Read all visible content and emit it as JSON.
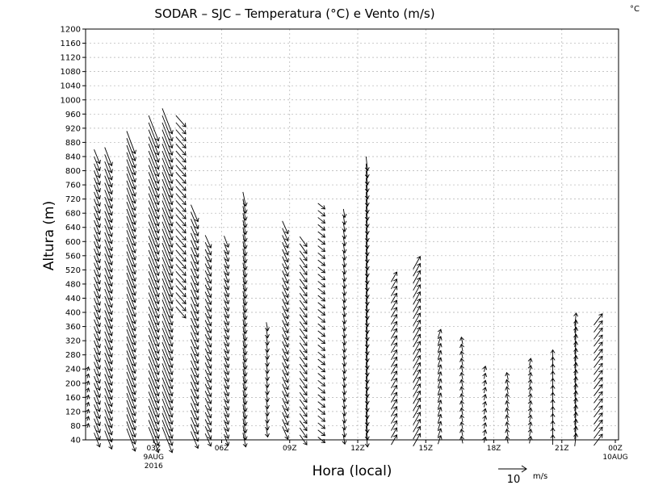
{
  "chart_data": {
    "type": "vector-field",
    "title": "SODAR – SJC – Temperatura (°C) e Vento (m/s)",
    "corner_label": "°C",
    "xlabel": "Hora (local)",
    "ylabel": "Altura (m)",
    "ylim": [
      40,
      1200
    ],
    "yticks": [
      40,
      80,
      120,
      160,
      200,
      240,
      280,
      320,
      360,
      400,
      440,
      480,
      520,
      560,
      600,
      640,
      680,
      720,
      760,
      800,
      840,
      880,
      920,
      960,
      1000,
      1040,
      1080,
      1120,
      1160,
      1200
    ],
    "xlim": [
      0,
      23.5
    ],
    "xticks": [
      {
        "hour": 3,
        "label": "03Z",
        "sub1": "9AUG",
        "sub2": "2016"
      },
      {
        "hour": 6,
        "label": "06Z"
      },
      {
        "hour": 9,
        "label": "09Z"
      },
      {
        "hour": 12,
        "label": "12Z"
      },
      {
        "hour": 15,
        "label": "15Z"
      },
      {
        "hour": 18,
        "label": "18Z"
      },
      {
        "hour": 21,
        "label": "21Z"
      },
      {
        "hour": 24,
        "label": "00Z",
        "sub1": "10AUG"
      }
    ],
    "reference_vector": {
      "value": 10,
      "unit": "m/s",
      "label": "10",
      "unit_label": "m/s"
    },
    "columns": [
      {
        "hour": 0.1,
        "bottom": 80,
        "top": 240,
        "u": 0.5,
        "v": 1.5
      },
      {
        "hour": 0.5,
        "bottom": 40,
        "top": 840,
        "u": 2.0,
        "v": -5.0
      },
      {
        "hour": 1.0,
        "bottom": 40,
        "top": 840,
        "u": 2.5,
        "v": -6.5
      },
      {
        "hour": 2.0,
        "bottom": 40,
        "top": 880,
        "u": 3.0,
        "v": -8.0
      },
      {
        "hour": 3.0,
        "bottom": 40,
        "top": 920,
        "u": 3.5,
        "v": -9.0
      },
      {
        "hour": 3.6,
        "bottom": 40,
        "top": 940,
        "u": 3.5,
        "v": -9.0
      },
      {
        "hour": 4.2,
        "bottom": 400,
        "top": 940,
        "u": 3.5,
        "v": -4.0
      },
      {
        "hour": 4.8,
        "bottom": 40,
        "top": 680,
        "u": 2.5,
        "v": -6.0
      },
      {
        "hour": 5.4,
        "bottom": 40,
        "top": 610,
        "u": 2.0,
        "v": -4.5
      },
      {
        "hour": 6.2,
        "bottom": 40,
        "top": 600,
        "u": 1.5,
        "v": -4.0
      },
      {
        "hour": 7.0,
        "bottom": 40,
        "top": 720,
        "u": 1.0,
        "v": -5.0
      },
      {
        "hour": 8.0,
        "bottom": 60,
        "top": 360,
        "u": 0.5,
        "v": -3.0
      },
      {
        "hour": 8.8,
        "bottom": 60,
        "top": 640,
        "u": 2.0,
        "v": -4.5
      },
      {
        "hour": 9.6,
        "bottom": 40,
        "top": 600,
        "u": 2.5,
        "v": -3.5
      },
      {
        "hour": 10.4,
        "bottom": 40,
        "top": 700,
        "u": 2.5,
        "v": -2.0
      },
      {
        "hour": 11.4,
        "bottom": 40,
        "top": 680,
        "u": 0.5,
        "v": -3.0
      },
      {
        "hour": 12.4,
        "bottom": 40,
        "top": 830,
        "u": 0.5,
        "v": -5.0
      },
      {
        "hour": 13.6,
        "bottom": 40,
        "top": 500,
        "u": 2.0,
        "v": 3.5
      },
      {
        "hour": 14.6,
        "bottom": 40,
        "top": 540,
        "u": 2.5,
        "v": 4.5
      },
      {
        "hour": 15.6,
        "bottom": 40,
        "top": 350,
        "u": 1.0,
        "v": 3.0
      },
      {
        "hour": 16.6,
        "bottom": 40,
        "top": 330,
        "u": -0.5,
        "v": 2.5
      },
      {
        "hour": 17.6,
        "bottom": 40,
        "top": 240,
        "u": 0.5,
        "v": 2.0
      },
      {
        "hour": 18.6,
        "bottom": 40,
        "top": 220,
        "u": -0.5,
        "v": 2.5
      },
      {
        "hour": 19.6,
        "bottom": 40,
        "top": 260,
        "u": 0.5,
        "v": 2.5
      },
      {
        "hour": 20.6,
        "bottom": 40,
        "top": 290,
        "u": 0.0,
        "v": 3.5
      },
      {
        "hour": 21.6,
        "bottom": 40,
        "top": 380,
        "u": 0.5,
        "v": 4.5
      },
      {
        "hour": 22.6,
        "bottom": 40,
        "top": 390,
        "u": 3.0,
        "v": 4.0
      }
    ]
  }
}
